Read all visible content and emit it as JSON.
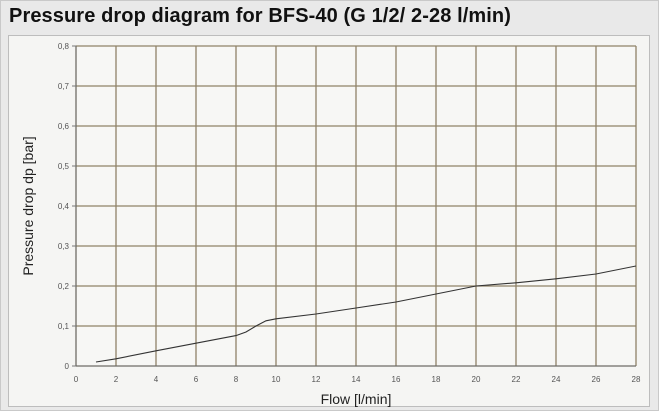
{
  "chart_data": {
    "type": "line",
    "title": "Pressure drop diagram for BFS-40 (G 1/2/ 2-28 l/min)",
    "xlabel": "Flow [l/min]",
    "ylabel": "Pressure drop dp [bar]",
    "xlim": [
      0,
      28
    ],
    "ylim": [
      0,
      0.8
    ],
    "xticks": [
      "0",
      "2",
      "4",
      "6",
      "8",
      "10",
      "12",
      "14",
      "16",
      "18",
      "20",
      "22",
      "24",
      "26",
      "28"
    ],
    "yticks": [
      "0",
      "0,1",
      "0,2",
      "0,3",
      "0,4",
      "0,5",
      "0,6",
      "0,7",
      "0,8"
    ],
    "grid": true,
    "line_color": "#333333",
    "grid_color": "#8f8268",
    "series": [
      {
        "x": [
          1,
          2,
          4,
          6,
          8,
          8.5,
          9,
          9.5,
          10,
          12,
          14,
          16,
          18,
          20,
          22,
          24,
          26,
          28
        ],
        "y": [
          0.01,
          0.018,
          0.038,
          0.057,
          0.076,
          0.085,
          0.1,
          0.113,
          0.118,
          0.13,
          0.145,
          0.16,
          0.18,
          0.2,
          0.208,
          0.218,
          0.23,
          0.25
        ]
      }
    ]
  }
}
